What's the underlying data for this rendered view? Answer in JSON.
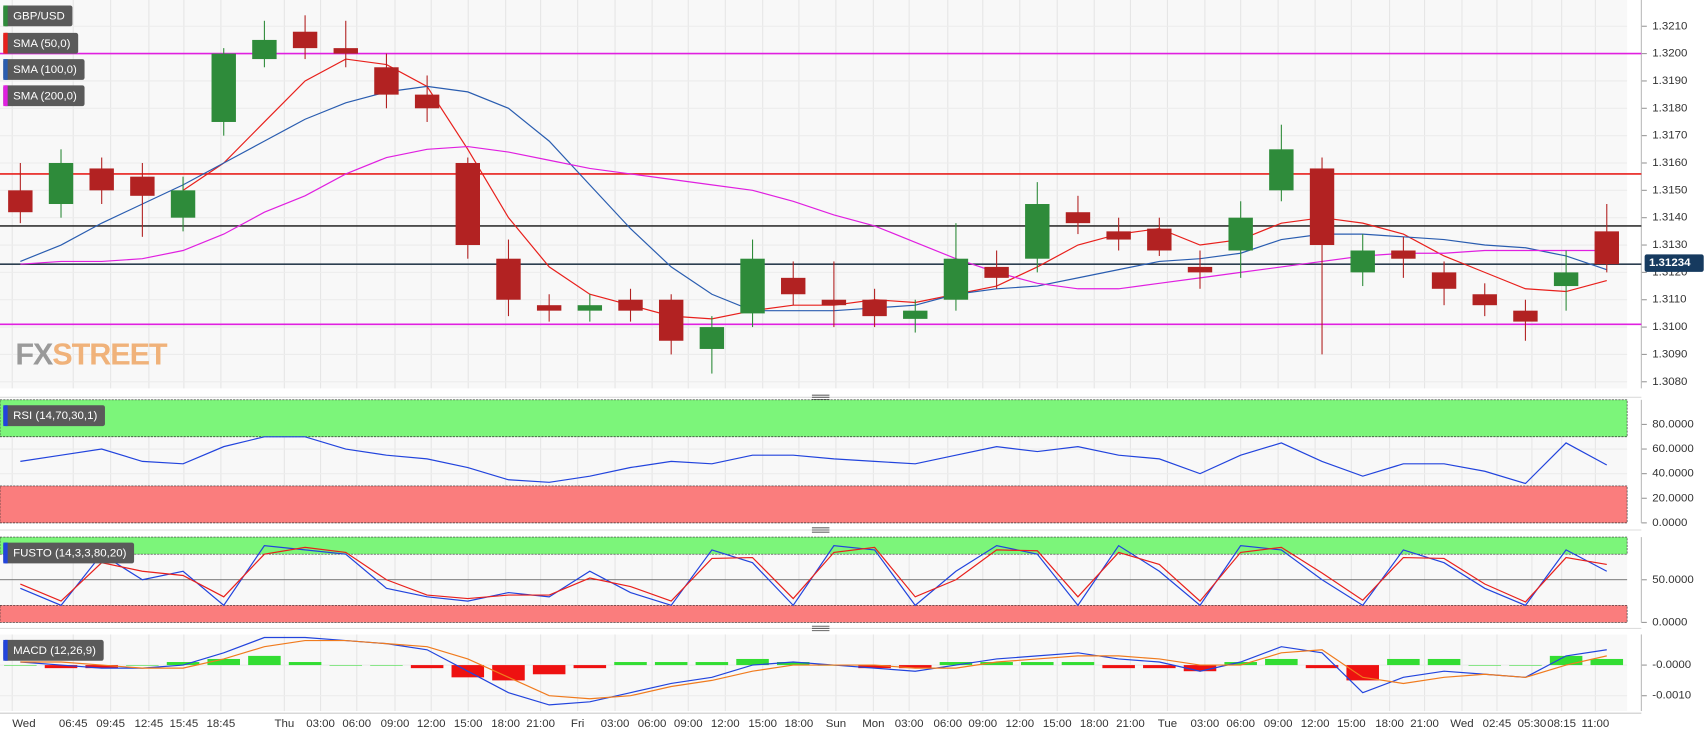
{
  "chart_data": [
    {
      "type": "candlestick",
      "title": "GBP/USD",
      "open": [
        1.315,
        1.3145,
        1.3158,
        1.3155,
        1.314,
        1.3175,
        1.3198,
        1.3208,
        1.3202,
        1.3195,
        1.3185,
        1.316,
        1.3125,
        1.3108,
        1.3106,
        1.311,
        1.311,
        1.3092,
        1.3105,
        1.3118,
        1.311,
        1.311,
        1.3103,
        1.311,
        1.3122,
        1.3125,
        1.3142,
        1.3135,
        1.3136,
        1.3122,
        1.3128,
        1.315,
        1.3158,
        1.312,
        1.3128,
        1.312,
        1.3112,
        1.3106,
        1.3115,
        1.3135
      ],
      "high": [
        1.316,
        1.3165,
        1.3162,
        1.316,
        1.3155,
        1.3202,
        1.3212,
        1.3214,
        1.3212,
        1.32,
        1.3192,
        1.3162,
        1.3132,
        1.3112,
        1.3112,
        1.3114,
        1.3112,
        1.3104,
        1.3132,
        1.3124,
        1.3124,
        1.3114,
        1.311,
        1.3138,
        1.3128,
        1.3153,
        1.3148,
        1.314,
        1.314,
        1.3128,
        1.3146,
        1.3174,
        1.3162,
        1.3134,
        1.3133,
        1.3124,
        1.3116,
        1.311,
        1.3128,
        1.3145
      ],
      "low": [
        1.3138,
        1.314,
        1.3145,
        1.3133,
        1.3135,
        1.317,
        1.3195,
        1.3198,
        1.3195,
        1.318,
        1.3175,
        1.3125,
        1.3104,
        1.3102,
        1.3102,
        1.3102,
        1.309,
        1.3083,
        1.31,
        1.3108,
        1.31,
        1.31,
        1.3098,
        1.3106,
        1.3114,
        1.312,
        1.3134,
        1.3128,
        1.3126,
        1.3114,
        1.3118,
        1.3146,
        1.309,
        1.3115,
        1.3118,
        1.3108,
        1.3104,
        1.3095,
        1.3106,
        1.312
      ],
      "close": [
        1.3142,
        1.316,
        1.315,
        1.3148,
        1.315,
        1.32,
        1.3205,
        1.3202,
        1.32,
        1.3185,
        1.318,
        1.313,
        1.311,
        1.3106,
        1.3108,
        1.3106,
        1.3095,
        1.31,
        1.3125,
        1.3112,
        1.3108,
        1.3104,
        1.3106,
        1.3125,
        1.3118,
        1.3145,
        1.3138,
        1.3132,
        1.3128,
        1.312,
        1.314,
        1.3165,
        1.313,
        1.3128,
        1.3125,
        1.3114,
        1.3108,
        1.3102,
        1.312,
        1.3123
      ],
      "up_color": "#2e8b3a",
      "down_color": "#b22222",
      "series": [
        {
          "name": "SMA (50,0)",
          "color": "#e8201c",
          "values": [
            null,
            null,
            null,
            null,
            1.315,
            1.316,
            1.3175,
            1.319,
            1.3198,
            1.3196,
            1.3188,
            1.3165,
            1.314,
            1.3122,
            1.3112,
            1.3108,
            1.3104,
            1.3103,
            1.3106,
            1.3108,
            1.3108,
            1.311,
            1.3109,
            1.3112,
            1.3115,
            1.3122,
            1.313,
            1.3134,
            1.3136,
            1.313,
            1.3132,
            1.3138,
            1.314,
            1.3138,
            1.3134,
            1.3126,
            1.312,
            1.3114,
            1.3113,
            1.3117
          ]
        },
        {
          "name": "SMA (100,0)",
          "color": "#2a5db0",
          "values": [
            1.3124,
            1.313,
            1.3138,
            1.3145,
            1.3152,
            1.316,
            1.3168,
            1.3176,
            1.3182,
            1.3186,
            1.3188,
            1.3186,
            1.318,
            1.3168,
            1.3152,
            1.3136,
            1.3122,
            1.3112,
            1.3106,
            1.3106,
            1.3106,
            1.3107,
            1.3108,
            1.3112,
            1.3114,
            1.3115,
            1.3118,
            1.3121,
            1.3124,
            1.3125,
            1.3127,
            1.3132,
            1.3134,
            1.3134,
            1.3133,
            1.3132,
            1.313,
            1.3129,
            1.3126,
            1.3121
          ]
        },
        {
          "name": "SMA (200,0)",
          "color": "#e020e0",
          "values": [
            1.3123,
            1.3124,
            1.3124,
            1.3125,
            1.3128,
            1.3134,
            1.3142,
            1.3148,
            1.3156,
            1.3162,
            1.3165,
            1.3166,
            1.3164,
            1.3161,
            1.3158,
            1.3156,
            1.3154,
            1.3152,
            1.315,
            1.3146,
            1.3141,
            1.3137,
            1.3131,
            1.3125,
            1.312,
            1.3116,
            1.3114,
            1.3114,
            1.3116,
            1.3118,
            1.312,
            1.3122,
            1.3124,
            1.3126,
            1.3127,
            1.3127,
            1.3128,
            1.3128,
            1.3128,
            1.3128
          ]
        }
      ],
      "levels": [
        {
          "value": 1.32,
          "color": "#e020e0"
        },
        {
          "value": 1.3156,
          "color": "#e8201c"
        },
        {
          "value": 1.3137,
          "color": "#333333"
        },
        {
          "value": 1.3123,
          "color": "#2c3e50"
        },
        {
          "value": 1.3101,
          "color": "#e020e0"
        }
      ],
      "last_price": 1.31234,
      "last_price_color": "#163a5f",
      "watermark": [
        "FX",
        "STREET"
      ],
      "xlim": [
        0,
        40
      ],
      "ylim": [
        1.30776,
        1.32196
      ],
      "yticks": [
        {
          "value": 1.308,
          "label": "1.3080"
        },
        {
          "value": 1.309,
          "label": "1.3090"
        },
        {
          "value": 1.31,
          "label": "1.3100"
        },
        {
          "value": 1.311,
          "label": "1.3110"
        },
        {
          "value": 1.312,
          "label": "1.3120"
        },
        {
          "value": 1.313,
          "label": "1.3130"
        },
        {
          "value": 1.314,
          "label": "1.3140"
        },
        {
          "value": 1.315,
          "label": "1.3150"
        },
        {
          "value": 1.316,
          "label": "1.3160"
        },
        {
          "value": 1.317,
          "label": "1.3170"
        },
        {
          "value": 1.318,
          "label": "1.3180"
        },
        {
          "value": 1.319,
          "label": "1.3190"
        },
        {
          "value": 1.32,
          "label": "1.3200"
        },
        {
          "value": 1.321,
          "label": "1.3210"
        }
      ]
    },
    {
      "type": "line",
      "title": "RSI (14,70,30,1)",
      "series": [
        {
          "color": "#2244dd",
          "values": [
            50,
            55,
            60,
            50,
            48,
            62,
            70,
            70,
            60,
            55,
            52,
            45,
            35,
            33,
            38,
            45,
            50,
            48,
            55,
            55,
            52,
            50,
            48,
            55,
            62,
            58,
            62,
            55,
            52,
            40,
            55,
            65,
            50,
            38,
            48,
            48,
            42,
            32,
            65,
            47
          ]
        }
      ],
      "bands": [
        {
          "from": 70,
          "to": 100,
          "color": "#7cf57a"
        },
        {
          "from": 0,
          "to": 30,
          "color": "#fa7d7d"
        }
      ],
      "xlim": [
        0,
        40
      ],
      "ylim": [
        0,
        100
      ],
      "yticks": [
        {
          "value": 0,
          "label": "0.0000"
        },
        {
          "value": 20,
          "label": "20.0000"
        },
        {
          "value": 40,
          "label": "40.0000"
        },
        {
          "value": 60,
          "label": "60.0000"
        },
        {
          "value": 80,
          "label": "80.0000"
        }
      ]
    },
    {
      "type": "line",
      "title": "FUSTO (14,3,3,80,20)",
      "series": [
        {
          "color": "#2244dd",
          "values": [
            40,
            20,
            80,
            50,
            60,
            20,
            90,
            85,
            80,
            40,
            30,
            25,
            35,
            30,
            60,
            35,
            20,
            85,
            70,
            20,
            90,
            85,
            20,
            60,
            90,
            80,
            20,
            90,
            60,
            20,
            90,
            85,
            50,
            20,
            85,
            70,
            40,
            20,
            85,
            60
          ]
        },
        {
          "color": "#e8201c",
          "values": [
            45,
            25,
            70,
            60,
            55,
            30,
            80,
            88,
            82,
            50,
            32,
            28,
            32,
            32,
            52,
            42,
            25,
            75,
            76,
            28,
            82,
            88,
            30,
            50,
            85,
            84,
            30,
            82,
            68,
            25,
            82,
            88,
            58,
            26,
            76,
            75,
            45,
            24,
            76,
            68
          ]
        }
      ],
      "bands": [
        {
          "from": 80,
          "to": 100,
          "color": "#7cf57a"
        },
        {
          "from": 0,
          "to": 20,
          "color": "#fa7d7d"
        }
      ],
      "midline": 50,
      "xlim": [
        0,
        40
      ],
      "ylim": [
        0,
        100
      ],
      "yticks": [
        {
          "value": 0,
          "label": "0.0000"
        },
        {
          "value": 50,
          "label": "50.0000"
        }
      ]
    },
    {
      "type": "macd",
      "title": "MACD (12,26,9)",
      "series": [
        {
          "color": "#2244dd",
          "values": [
            0.0001,
            0,
            -0.0001,
            -0.0001,
            0,
            0.0004,
            0.0009,
            0.0009,
            0.0008,
            0.0007,
            0.0005,
            -0.0002,
            -0.0009,
            -0.0013,
            -0.0012,
            -0.0009,
            -0.0006,
            -0.0004,
            0,
            0.0001,
            0,
            -0.0001,
            -0.0002,
            0,
            0.0002,
            0.0003,
            0.0004,
            0.0002,
            0.0001,
            -0.0002,
            0.0001,
            0.0006,
            0.0004,
            -0.0009,
            -0.0004,
            -0.0002,
            -0.0003,
            -0.0004,
            0.0003,
            0.0005
          ]
        },
        {
          "color": "#f07b1e",
          "values": [
            0.0001,
            0.0001,
            0,
            -0.0001,
            -0.0001,
            0.0002,
            0.0006,
            0.0008,
            0.0008,
            0.0007,
            0.0006,
            0.0002,
            -0.0004,
            -0.001,
            -0.0011,
            -0.001,
            -0.0007,
            -0.0005,
            -0.0002,
            0,
            0,
            0,
            -0.0001,
            -0.0001,
            0.0001,
            0.0002,
            0.0003,
            0.0003,
            0.0002,
            0,
            0,
            0.0004,
            0.0005,
            -0.0004,
            -0.0006,
            -0.0004,
            -0.0003,
            -0.0004,
            0,
            0.0003
          ]
        }
      ],
      "histogram": {
        "up_color": "#33dd33",
        "down_color": "#ee1111",
        "values": [
          0,
          -0.0001,
          -0.0001,
          0,
          0.0001,
          0.0002,
          0.0003,
          0.0001,
          0,
          0,
          -0.0001,
          -0.0004,
          -0.0005,
          -0.0003,
          -0.0001,
          0.0001,
          0.0001,
          0.0001,
          0.0002,
          0.0001,
          0,
          -0.0001,
          -0.0001,
          0.0001,
          0.0001,
          0.0001,
          0.0001,
          -0.0001,
          -0.0001,
          -0.0002,
          0.0001,
          0.0002,
          -0.0001,
          -0.0005,
          0.0002,
          0.0002,
          0,
          0,
          0.0003,
          0.0002
        ]
      },
      "xlim": [
        0,
        40
      ],
      "ylim": [
        -0.0015,
        0.001
      ],
      "yticks": [
        {
          "value": -0.001,
          "label": "-0.0010"
        },
        {
          "value": 0,
          "label": "-0.0000"
        }
      ],
      "xticks": [
        {
          "value": 0.3,
          "label": "Wed"
        },
        {
          "value": 1.8,
          "label": "06:45"
        },
        {
          "value": 2.72,
          "label": "09:45"
        },
        {
          "value": 3.66,
          "label": "12:45"
        },
        {
          "value": 4.52,
          "label": "15:45"
        },
        {
          "value": 5.43,
          "label": "18:45"
        },
        {
          "value": 6.99,
          "label": "Thu"
        },
        {
          "value": 7.88,
          "label": "03:00"
        },
        {
          "value": 8.77,
          "label": "06:00"
        },
        {
          "value": 9.71,
          "label": "09:00"
        },
        {
          "value": 10.6,
          "label": "12:00"
        },
        {
          "value": 11.51,
          "label": "15:00"
        },
        {
          "value": 12.43,
          "label": "18:00"
        },
        {
          "value": 13.29,
          "label": "21:00"
        },
        {
          "value": 14.2,
          "label": "Fri"
        },
        {
          "value": 15.12,
          "label": "03:00"
        },
        {
          "value": 16.03,
          "label": "06:00"
        },
        {
          "value": 16.92,
          "label": "09:00"
        },
        {
          "value": 17.83,
          "label": "12:00"
        },
        {
          "value": 18.75,
          "label": "15:00"
        },
        {
          "value": 19.64,
          "label": "18:00"
        },
        {
          "value": 20.55,
          "label": "Sun"
        },
        {
          "value": 21.47,
          "label": "Mon"
        },
        {
          "value": 22.35,
          "label": "03:00"
        },
        {
          "value": 23.3,
          "label": "06:00"
        },
        {
          "value": 24.16,
          "label": "09:00"
        },
        {
          "value": 25.07,
          "label": "12:00"
        },
        {
          "value": 25.99,
          "label": "15:00"
        },
        {
          "value": 26.9,
          "label": "18:00"
        },
        {
          "value": 27.79,
          "label": "21:00"
        },
        {
          "value": 28.7,
          "label": "Tue"
        },
        {
          "value": 29.62,
          "label": "03:00"
        },
        {
          "value": 30.5,
          "label": "06:00"
        },
        {
          "value": 31.42,
          "label": "09:00"
        },
        {
          "value": 32.33,
          "label": "12:00"
        },
        {
          "value": 33.22,
          "label": "15:00"
        },
        {
          "value": 34.16,
          "label": "18:00"
        },
        {
          "value": 35.02,
          "label": "21:00"
        },
        {
          "value": 35.94,
          "label": "Wed"
        },
        {
          "value": 36.8,
          "label": "02:45"
        },
        {
          "value": 37.66,
          "label": "05:30"
        },
        {
          "value": 38.39,
          "label": "08:15"
        },
        {
          "value": 39.22,
          "label": "11:00"
        }
      ]
    }
  ]
}
